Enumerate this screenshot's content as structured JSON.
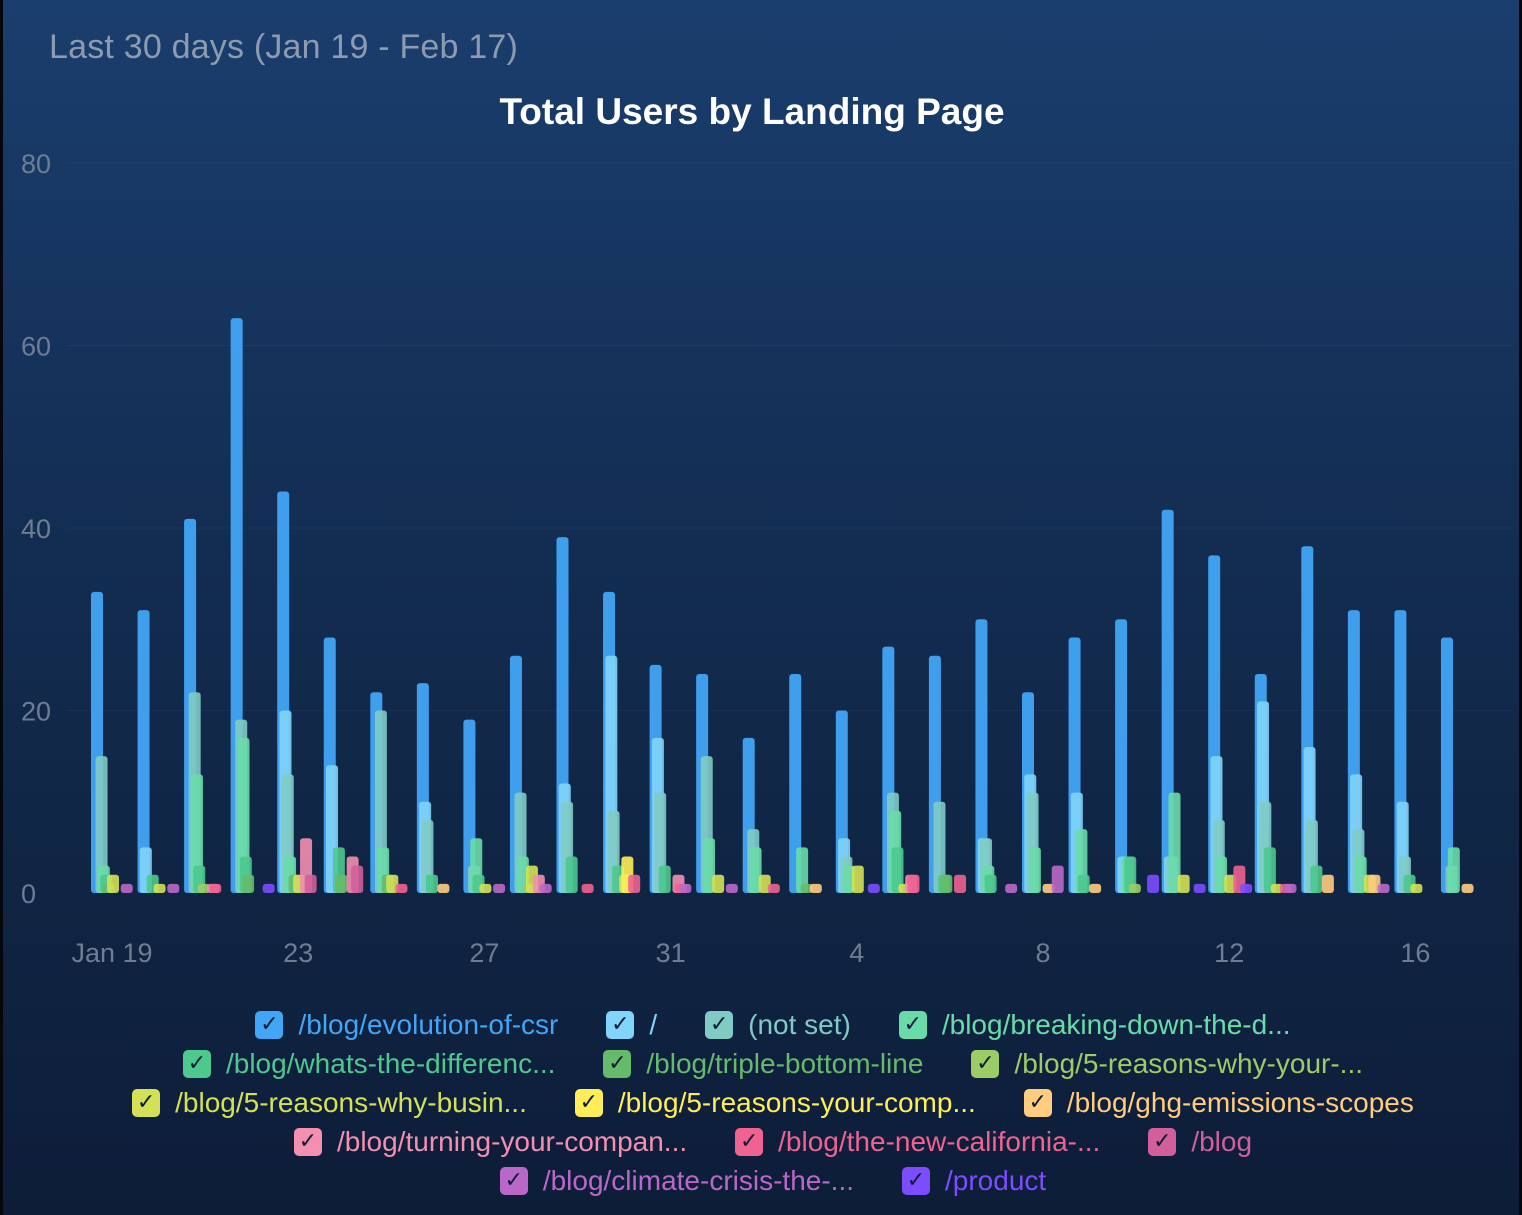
{
  "header": {
    "period": "Last 30 days (Jan 19 - Feb 17)"
  },
  "chart_data": {
    "type": "bar",
    "title": "Total Users by Landing Page",
    "xlabel": "",
    "ylabel": "",
    "ylim": [
      0,
      80
    ],
    "yticks": [
      0,
      20,
      40,
      60,
      80
    ],
    "grid": true,
    "legend_position": "bottom",
    "categories": [
      "Jan 19",
      "Jan 20",
      "Jan 21",
      "Jan 22",
      "Jan 23",
      "Jan 24",
      "Jan 25",
      "Jan 26",
      "Jan 27",
      "Jan 28",
      "Jan 29",
      "Jan 30",
      "Jan 31",
      "Feb 1",
      "Feb 2",
      "Feb 3",
      "Feb 4",
      "Feb 5",
      "Feb 6",
      "Feb 7",
      "Feb 8",
      "Feb 9",
      "Feb 10",
      "Feb 11",
      "Feb 12",
      "Feb 13",
      "Feb 14",
      "Feb 15",
      "Feb 16",
      "Feb 17"
    ],
    "x_tick_labels": [
      {
        "index": 0,
        "label": "Jan 19"
      },
      {
        "index": 4,
        "label": "23"
      },
      {
        "index": 8,
        "label": "27"
      },
      {
        "index": 12,
        "label": "31"
      },
      {
        "index": 16,
        "label": "4"
      },
      {
        "index": 20,
        "label": "8"
      },
      {
        "index": 24,
        "label": "12"
      },
      {
        "index": 28,
        "label": "16"
      }
    ],
    "series": [
      {
        "name": "/blog/evolution-of-csr",
        "color": "#42a5f5",
        "values": [
          33,
          31,
          41,
          63,
          44,
          28,
          22,
          23,
          19,
          26,
          39,
          33,
          25,
          24,
          17,
          24,
          20,
          27,
          26,
          30,
          22,
          28,
          30,
          42,
          37,
          24,
          38,
          31,
          31,
          28
        ]
      },
      {
        "name": "/",
        "color": "#81d4fa",
        "values": [
          0,
          5,
          0,
          0,
          20,
          14,
          0,
          10,
          0,
          0,
          12,
          26,
          17,
          0,
          0,
          0,
          6,
          0,
          0,
          6,
          13,
          11,
          4,
          4,
          15,
          21,
          16,
          13,
          10,
          0
        ]
      },
      {
        "name": "(not set)",
        "color": "#80cbc4",
        "values": [
          15,
          0,
          22,
          19,
          13,
          0,
          20,
          8,
          3,
          11,
          10,
          9,
          11,
          15,
          7,
          0,
          4,
          11,
          10,
          6,
          11,
          0,
          0,
          4,
          8,
          10,
          8,
          7,
          4,
          3
        ]
      },
      {
        "name": "/blog/breaking-down-the-d...",
        "color": "#69dba8",
        "values": [
          3,
          0,
          13,
          17,
          4,
          0,
          5,
          0,
          6,
          4,
          0,
          0,
          0,
          6,
          5,
          5,
          3,
          9,
          0,
          3,
          5,
          7,
          4,
          11,
          4,
          0,
          0,
          4,
          0,
          5
        ]
      },
      {
        "name": "/blog/whats-the-differenc...",
        "color": "#4dc98e",
        "values": [
          2,
          2,
          3,
          4,
          0,
          5,
          0,
          2,
          2,
          0,
          4,
          3,
          3,
          0,
          0,
          0,
          0,
          5,
          2,
          2,
          0,
          2,
          4,
          0,
          0,
          5,
          3,
          0,
          2,
          0
        ]
      },
      {
        "name": "/blog/triple-bottom-line",
        "color": "#66bb6a",
        "values": [
          1,
          0,
          0,
          2,
          2,
          2,
          2,
          0,
          0,
          0,
          0,
          0,
          0,
          0,
          0,
          1,
          0,
          0,
          2,
          0,
          0,
          0,
          0,
          0,
          0,
          0,
          0,
          0,
          0,
          0
        ]
      },
      {
        "name": "/blog/5-reasons-why-your-...",
        "color": "#9ccc65",
        "values": [
          0,
          0,
          1,
          0,
          0,
          0,
          0,
          0,
          0,
          1,
          0,
          0,
          0,
          0,
          0,
          0,
          0,
          0,
          0,
          0,
          0,
          0,
          1,
          0,
          0,
          0,
          0,
          0,
          0,
          0
        ]
      },
      {
        "name": "/blog/5-reasons-why-busin...",
        "color": "#d4e157",
        "values": [
          2,
          1,
          0,
          0,
          2,
          0,
          2,
          0,
          1,
          3,
          0,
          2,
          0,
          2,
          2,
          0,
          3,
          1,
          0,
          0,
          0,
          0,
          0,
          2,
          2,
          1,
          0,
          2,
          1,
          0
        ]
      },
      {
        "name": "/blog/5-reasons-your-comp...",
        "color": "#ffee58",
        "values": [
          0,
          0,
          0,
          0,
          0,
          0,
          0,
          0,
          0,
          0,
          0,
          4,
          0,
          0,
          0,
          0,
          0,
          0,
          0,
          0,
          0,
          0,
          0,
          0,
          0,
          0,
          0,
          0,
          0,
          0
        ]
      },
      {
        "name": "/blog/ghg-emissions-scopes",
        "color": "#ffcc80",
        "values": [
          0,
          0,
          0,
          0,
          0,
          0,
          0,
          1,
          0,
          0,
          0,
          0,
          0,
          0,
          0,
          1,
          0,
          0,
          0,
          0,
          1,
          1,
          0,
          0,
          0,
          0,
          2,
          2,
          0,
          1
        ]
      },
      {
        "name": "/blog/turning-your-compan...",
        "color": "#f48fb1",
        "values": [
          0,
          0,
          1,
          0,
          6,
          4,
          0,
          0,
          0,
          2,
          0,
          0,
          2,
          0,
          0,
          0,
          0,
          2,
          0,
          0,
          0,
          0,
          0,
          0,
          0,
          0,
          0,
          0,
          0,
          0
        ]
      },
      {
        "name": "/blog/the-new-california-...",
        "color": "#f06292",
        "values": [
          0,
          0,
          1,
          0,
          0,
          0,
          1,
          0,
          0,
          0,
          1,
          2,
          1,
          0,
          1,
          0,
          0,
          2,
          2,
          0,
          0,
          0,
          0,
          0,
          3,
          1,
          0,
          0,
          0,
          0
        ]
      },
      {
        "name": "/blog",
        "color": "#d05f9b",
        "values": [
          0,
          0,
          0,
          0,
          2,
          3,
          0,
          0,
          0,
          0,
          0,
          0,
          0,
          0,
          0,
          0,
          0,
          0,
          0,
          0,
          0,
          0,
          0,
          0,
          0,
          0,
          0,
          0,
          0,
          0
        ]
      },
      {
        "name": "/blog/climate-crisis-the-...",
        "color": "#ba68c8",
        "values": [
          1,
          1,
          0,
          0,
          0,
          0,
          0,
          0,
          1,
          1,
          0,
          0,
          1,
          1,
          0,
          0,
          0,
          0,
          0,
          1,
          3,
          0,
          0,
          0,
          0,
          1,
          0,
          1,
          0,
          0
        ]
      },
      {
        "name": "/product",
        "color": "#7c4dff",
        "values": [
          0,
          0,
          0,
          1,
          0,
          0,
          0,
          0,
          0,
          0,
          0,
          0,
          0,
          0,
          0,
          0,
          1,
          0,
          0,
          0,
          0,
          0,
          2,
          1,
          1,
          0,
          0,
          0,
          0,
          0
        ]
      }
    ]
  },
  "legend_rows": [
    [
      0,
      1,
      2,
      3
    ],
    [
      4,
      5,
      6
    ],
    [
      7,
      8,
      9
    ],
    [
      10,
      11,
      12
    ],
    [
      13,
      14
    ]
  ]
}
